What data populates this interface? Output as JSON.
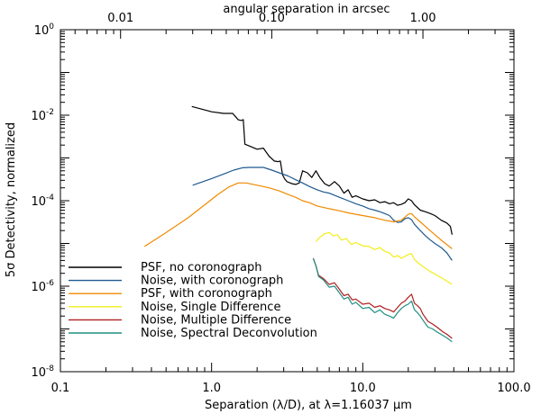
{
  "chart_data": {
    "type": "line",
    "xlabel": "Separation (λ/D), at λ=1.16037 μm",
    "ylabel": "5σ Detectivity, normalized",
    "top_axis_label": "angular separation in arcsec",
    "x_scale": "log",
    "y_scale": "log",
    "xlim": [
      0.1,
      100
    ],
    "ylim": [
      1e-08,
      1
    ],
    "top_xlim": [
      0.004,
      4.0
    ],
    "x_ticks": [
      {
        "value": 0.1,
        "label": "0.1"
      },
      {
        "value": 1,
        "label": "1.0"
      },
      {
        "value": 10,
        "label": "10.0"
      },
      {
        "value": 100,
        "label": "100.0"
      }
    ],
    "top_ticks": [
      {
        "value": 0.01,
        "label": "0.01"
      },
      {
        "value": 0.1,
        "label": "0.10"
      },
      {
        "value": 1.0,
        "label": "1.00"
      }
    ],
    "y_ticks": [
      {
        "exp": 0,
        "base": "10",
        "sup": "0"
      },
      {
        "exp": -2,
        "base": "10",
        "sup": "-2"
      },
      {
        "exp": -4,
        "base": "10",
        "sup": "-4"
      },
      {
        "exp": -6,
        "base": "10",
        "sup": "-6"
      },
      {
        "exp": -8,
        "base": "10",
        "sup": "-8"
      }
    ],
    "grid": false,
    "legend_position": "lower-left",
    "series": [
      {
        "name": "PSF, no coronograph",
        "color": "#000000",
        "points": [
          [
            0.74,
            0.016
          ],
          [
            1.0,
            0.012
          ],
          [
            1.2,
            0.011
          ],
          [
            1.38,
            0.011
          ],
          [
            1.45,
            0.009
          ],
          [
            1.5,
            0.0078
          ],
          [
            1.58,
            0.0075
          ],
          [
            1.62,
            0.0079
          ],
          [
            1.66,
            0.0021
          ],
          [
            1.85,
            0.0018
          ],
          [
            2.0,
            0.0016
          ],
          [
            2.2,
            0.0017
          ],
          [
            2.4,
            0.0011
          ],
          [
            2.6,
            0.00085
          ],
          [
            2.75,
            0.00082
          ],
          [
            2.85,
            0.00085
          ],
          [
            2.95,
            0.0004
          ],
          [
            3.05,
            0.00032
          ],
          [
            3.15,
            0.00028
          ],
          [
            3.4,
            0.00025
          ],
          [
            3.6,
            0.00024
          ],
          [
            3.8,
            0.00026
          ],
          [
            4.0,
            0.0005
          ],
          [
            4.3,
            0.00045
          ],
          [
            4.6,
            0.00035
          ],
          [
            4.9,
            0.0005
          ],
          [
            5.2,
            0.00035
          ],
          [
            5.6,
            0.00025
          ],
          [
            6.0,
            0.00022
          ],
          [
            6.5,
            0.00028
          ],
          [
            7.0,
            0.00022
          ],
          [
            7.5,
            0.00015
          ],
          [
            8.0,
            0.00018
          ],
          [
            8.5,
            0.00012
          ],
          [
            9.0,
            0.00013
          ],
          [
            10.0,
            0.00011
          ],
          [
            11.0,
            0.0001
          ],
          [
            12.0,
            0.000105
          ],
          [
            13.0,
            9e-05
          ],
          [
            14.0,
            9.5e-05
          ],
          [
            15.0,
            8.5e-05
          ],
          [
            16.0,
            9e-05
          ],
          [
            17.0,
            7.8e-05
          ],
          [
            18.0,
            8.2e-05
          ],
          [
            19.0,
            9e-05
          ],
          [
            20.0,
            0.00011
          ],
          [
            21.0,
            0.0001
          ],
          [
            22.0,
            8e-05
          ],
          [
            24.0,
            6e-05
          ],
          [
            26.0,
            5.5e-05
          ],
          [
            28.0,
            5e-05
          ],
          [
            30.0,
            4.5e-05
          ],
          [
            33.0,
            3.5e-05
          ],
          [
            36.0,
            3e-05
          ],
          [
            38.0,
            2.5e-05
          ],
          [
            39.0,
            1.6e-05
          ]
        ]
      },
      {
        "name": "Noise, with coronograph",
        "color": "#1f5a8f",
        "points": [
          [
            0.75,
            0.00023
          ],
          [
            1.0,
            0.00033
          ],
          [
            1.2,
            0.00042
          ],
          [
            1.4,
            0.00052
          ],
          [
            1.6,
            0.00059
          ],
          [
            1.8,
            0.0006
          ],
          [
            2.0,
            0.0006
          ],
          [
            2.2,
            0.0006
          ],
          [
            2.5,
            0.00052
          ],
          [
            2.8,
            0.00045
          ],
          [
            3.2,
            0.00038
          ],
          [
            3.6,
            0.00031
          ],
          [
            4.0,
            0.00026
          ],
          [
            4.5,
            0.00021
          ],
          [
            5.0,
            0.00018
          ],
          [
            5.5,
            0.00016
          ],
          [
            6.0,
            0.00015
          ],
          [
            7.0,
            0.00012
          ],
          [
            8.0,
            0.0001
          ],
          [
            9.0,
            8.5e-05
          ],
          [
            10.0,
            7.5e-05
          ],
          [
            11.0,
            6.5e-05
          ],
          [
            12.0,
            6e-05
          ],
          [
            13.0,
            5.5e-05
          ],
          [
            14.0,
            5e-05
          ],
          [
            15.0,
            4.5e-05
          ],
          [
            16.0,
            3.5e-05
          ],
          [
            17.0,
            3.1e-05
          ],
          [
            18.0,
            3.2e-05
          ],
          [
            19.0,
            3.8e-05
          ],
          [
            20.0,
            4e-05
          ],
          [
            21.0,
            3.6e-05
          ],
          [
            22.0,
            2.8e-05
          ],
          [
            24.0,
            2e-05
          ],
          [
            26.0,
            1.5e-05
          ],
          [
            28.0,
            1.2e-05
          ],
          [
            30.0,
            1e-05
          ],
          [
            33.0,
            8e-06
          ],
          [
            36.0,
            6e-06
          ],
          [
            39.0,
            4e-06
          ]
        ]
      },
      {
        "name": "PSF, with coronograph",
        "color": "#f08a00",
        "points": [
          [
            0.36,
            8.5e-06
          ],
          [
            0.5,
            1.8e-05
          ],
          [
            0.7,
            4e-05
          ],
          [
            0.9,
            8e-05
          ],
          [
            1.1,
            0.00014
          ],
          [
            1.3,
            0.00021
          ],
          [
            1.5,
            0.00026
          ],
          [
            1.7,
            0.00026
          ],
          [
            2.0,
            0.00023
          ],
          [
            2.4,
            0.0002
          ],
          [
            2.8,
            0.00017
          ],
          [
            3.2,
            0.00014
          ],
          [
            3.6,
            0.00012
          ],
          [
            4.0,
            0.0001
          ],
          [
            4.5,
            8.8e-05
          ],
          [
            5.0,
            7.5e-05
          ],
          [
            6.0,
            6.5e-05
          ],
          [
            7.0,
            5.8e-05
          ],
          [
            8.0,
            5.2e-05
          ],
          [
            9.0,
            4.8e-05
          ],
          [
            10.0,
            4.5e-05
          ],
          [
            12.0,
            4e-05
          ],
          [
            14.0,
            3.5e-05
          ],
          [
            16.0,
            3.2e-05
          ],
          [
            18.0,
            3.5e-05
          ],
          [
            20.0,
            4.8e-05
          ],
          [
            21.0,
            5e-05
          ],
          [
            22.0,
            4.2e-05
          ],
          [
            24.0,
            3.2e-05
          ],
          [
            27.0,
            2.2e-05
          ],
          [
            30.0,
            1.6e-05
          ],
          [
            34.0,
            1.1e-05
          ],
          [
            39.0,
            7.5e-06
          ]
        ]
      },
      {
        "name": "Noise, Single Difference",
        "color": "#f2ee1a",
        "points": [
          [
            4.9,
            1.1e-05
          ],
          [
            5.2,
            1.4e-05
          ],
          [
            5.6,
            1.7e-05
          ],
          [
            6.0,
            1.8e-05
          ],
          [
            6.4,
            1.5e-05
          ],
          [
            6.8,
            1.6e-05
          ],
          [
            7.2,
            1.2e-05
          ],
          [
            7.8,
            1.3e-05
          ],
          [
            8.4,
            9.5e-06
          ],
          [
            9.0,
            1.05e-05
          ],
          [
            10.0,
            8.8e-06
          ],
          [
            11.0,
            8.5e-06
          ],
          [
            12.0,
            7.2e-06
          ],
          [
            13.0,
            8e-06
          ],
          [
            14.0,
            6.5e-06
          ],
          [
            15.0,
            6e-06
          ],
          [
            16.0,
            4.8e-06
          ],
          [
            17.0,
            5.2e-06
          ],
          [
            18.0,
            4.5e-06
          ],
          [
            19.0,
            5e-06
          ],
          [
            20.0,
            5.5e-06
          ],
          [
            21.0,
            5.8e-06
          ],
          [
            22.0,
            4.2e-06
          ],
          [
            24.0,
            3.2e-06
          ],
          [
            26.0,
            2.6e-06
          ],
          [
            28.0,
            2.2e-06
          ],
          [
            31.0,
            1.8e-06
          ],
          [
            34.0,
            1.5e-06
          ],
          [
            39.0,
            1.1e-06
          ]
        ]
      },
      {
        "name": "Noise, Multiple Difference",
        "color": "#b02020",
        "points": [
          [
            4.7,
            4.5e-06
          ],
          [
            4.9,
            3e-06
          ],
          [
            5.1,
            1.8e-06
          ],
          [
            5.5,
            1.5e-06
          ],
          [
            6.0,
            1.1e-06
          ],
          [
            6.5,
            1.2e-06
          ],
          [
            7.0,
            8.5e-07
          ],
          [
            7.5,
            6e-07
          ],
          [
            8.0,
            6.5e-07
          ],
          [
            8.5,
            4.8e-07
          ],
          [
            9.0,
            5e-07
          ],
          [
            10.0,
            3.8e-07
          ],
          [
            11.0,
            4e-07
          ],
          [
            12.0,
            3.2e-07
          ],
          [
            13.0,
            3.5e-07
          ],
          [
            14.0,
            3e-07
          ],
          [
            15.0,
            2.8e-07
          ],
          [
            16.0,
            2.5e-07
          ],
          [
            17.0,
            3.2e-07
          ],
          [
            18.0,
            4e-07
          ],
          [
            19.0,
            4.5e-07
          ],
          [
            20.0,
            5.5e-07
          ],
          [
            21.0,
            6.5e-07
          ],
          [
            22.0,
            4e-07
          ],
          [
            23.0,
            3.5e-07
          ],
          [
            24.0,
            3e-07
          ],
          [
            25.0,
            2.2e-07
          ],
          [
            27.0,
            1.5e-07
          ],
          [
            29.0,
            1.3e-07
          ],
          [
            31.0,
            1.1e-07
          ],
          [
            34.0,
            8.5e-08
          ],
          [
            36.0,
            7.5e-08
          ],
          [
            39.0,
            6e-08
          ]
        ]
      },
      {
        "name": "Noise, Spectral Deconvolution",
        "color": "#1f8f82",
        "points": [
          [
            4.7,
            4.5e-06
          ],
          [
            4.9,
            3e-06
          ],
          [
            5.1,
            1.7e-06
          ],
          [
            5.5,
            1.4e-06
          ],
          [
            6.0,
            9.5e-07
          ],
          [
            6.5,
            1e-06
          ],
          [
            7.0,
            7e-07
          ],
          [
            7.5,
            5e-07
          ],
          [
            8.0,
            5.5e-07
          ],
          [
            8.5,
            3.8e-07
          ],
          [
            9.0,
            4.2e-07
          ],
          [
            10.0,
            3e-07
          ],
          [
            11.0,
            3.2e-07
          ],
          [
            12.0,
            2.4e-07
          ],
          [
            13.0,
            2.8e-07
          ],
          [
            14.0,
            2.2e-07
          ],
          [
            15.0,
            2e-07
          ],
          [
            16.0,
            1.8e-07
          ],
          [
            17.0,
            2.4e-07
          ],
          [
            18.0,
            3e-07
          ],
          [
            19.0,
            3.5e-07
          ],
          [
            20.0,
            3.8e-07
          ],
          [
            21.0,
            4.5e-07
          ],
          [
            22.0,
            2.8e-07
          ],
          [
            23.0,
            2.4e-07
          ],
          [
            24.0,
            2e-07
          ],
          [
            25.0,
            1.6e-07
          ],
          [
            27.0,
            1.1e-07
          ],
          [
            29.0,
            1e-07
          ],
          [
            31.0,
            8.5e-08
          ],
          [
            34.0,
            7e-08
          ],
          [
            36.0,
            6.2e-08
          ],
          [
            39.0,
            5e-08
          ]
        ]
      }
    ]
  }
}
